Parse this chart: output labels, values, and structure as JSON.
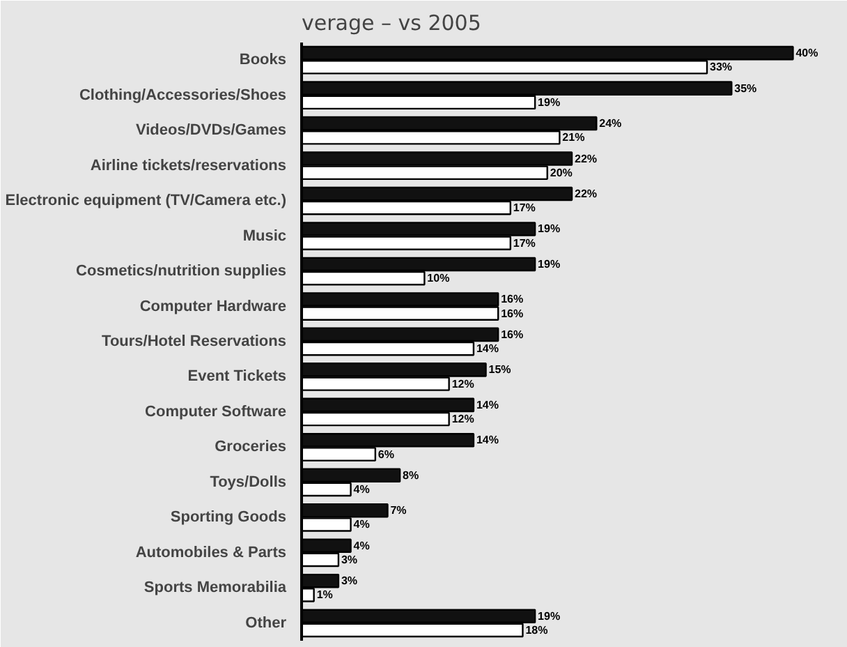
{
  "chart_data": {
    "type": "bar",
    "orientation": "horizontal",
    "title": "verage – vs 2005",
    "categories": [
      "Books",
      "Clothing/Accessories/Shoes",
      "Videos/DVDs/Games",
      "Airline tickets/reservations",
      "Electronic equipment (TV/Camera etc.)",
      "Music",
      "Cosmetics/nutrition supplies",
      "Computer Hardware",
      "Tours/Hotel Reservations",
      "Event Tickets",
      "Computer Software",
      "Groceries",
      "Toys/Dolls",
      "Sporting Goods",
      "Automobiles & Parts",
      "Sports Memorabilia",
      "Other"
    ],
    "series": [
      {
        "color": "#111111",
        "values": [
          40,
          35,
          24,
          22,
          22,
          19,
          19,
          16,
          16,
          15,
          14,
          14,
          8,
          7,
          4,
          3,
          19
        ],
        "value_labels": [
          "40%",
          "35%",
          "24%",
          "22%",
          "22%",
          "19%",
          "19%",
          "16%",
          "16%",
          "15%",
          "14%",
          "14%",
          "8%",
          "7%",
          "4%",
          "3%",
          "19%"
        ]
      },
      {
        "color": "#ffffff",
        "values": [
          33,
          19,
          21,
          20,
          17,
          17,
          10,
          16,
          14,
          12,
          12,
          6,
          4,
          4,
          3,
          1,
          18
        ],
        "value_labels": [
          "33%",
          "19%",
          "21%",
          "20%",
          "17%",
          "17%",
          "10%",
          "16%",
          "14%",
          "12%",
          "12%",
          "6%",
          "4%",
          "4%",
          "3%",
          "1%",
          "18%"
        ]
      }
    ]
  }
}
